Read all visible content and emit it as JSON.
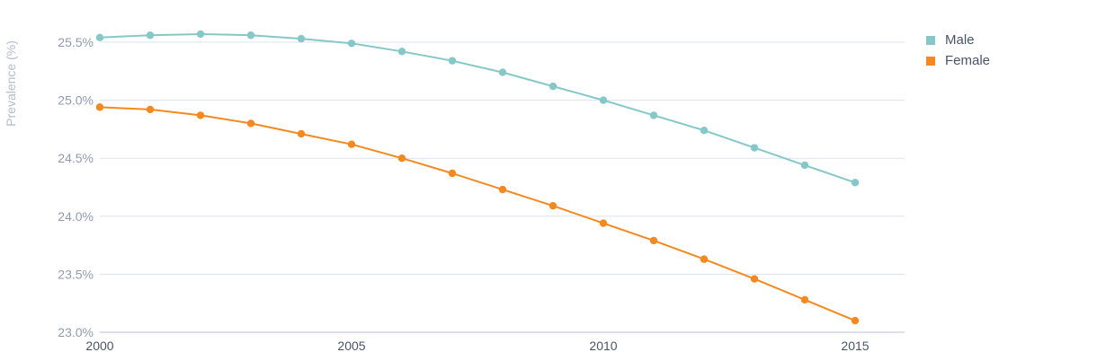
{
  "chart_data": {
    "type": "line",
    "title": "",
    "xlabel": "",
    "ylabel": "Prevalence (%)",
    "ylim": [
      23.0,
      25.75
    ],
    "xlim": [
      2000,
      2016
    ],
    "yticks": [
      "23.0%",
      "23.5%",
      "24.0%",
      "24.5%",
      "25.0%",
      "25.5%"
    ],
    "ytick_values": [
      23.0,
      23.5,
      24.0,
      24.5,
      25.0,
      25.5
    ],
    "xticks": [
      "2000",
      "2005",
      "2010",
      "2015"
    ],
    "xtick_values": [
      2000,
      2005,
      2010,
      2015
    ],
    "grid": true,
    "legend_position": "right",
    "x": [
      2000,
      2001,
      2002,
      2003,
      2004,
      2005,
      2006,
      2007,
      2008,
      2009,
      2010,
      2011,
      2012,
      2013,
      2014,
      2015
    ],
    "series": [
      {
        "name": "Male",
        "color": "#86c8c8",
        "values": [
          25.54,
          25.56,
          25.57,
          25.56,
          25.53,
          25.49,
          25.42,
          25.34,
          25.24,
          25.12,
          25.0,
          24.87,
          24.74,
          24.59,
          24.44,
          24.29
        ]
      },
      {
        "name": "Female",
        "color": "#f5891f",
        "values": [
          24.94,
          24.92,
          24.87,
          24.8,
          24.71,
          24.62,
          24.5,
          24.37,
          24.23,
          24.09,
          23.94,
          23.79,
          23.63,
          23.46,
          23.28,
          23.1
        ]
      }
    ]
  }
}
